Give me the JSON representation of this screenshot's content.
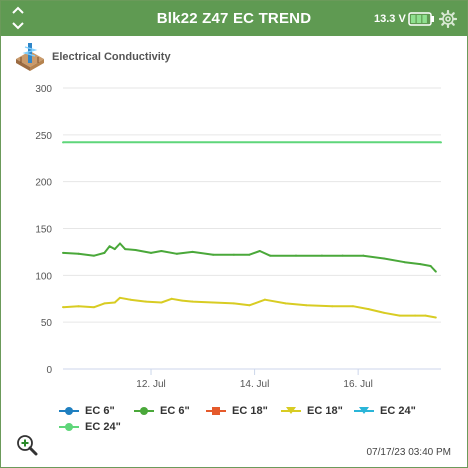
{
  "header": {
    "title": "Blk22 Z47 EC TREND",
    "voltage": "13.3 V",
    "bg_color": "#5f9a52"
  },
  "sensor": {
    "label": "Electrical Conductivity",
    "icon": "soil-probe-icon"
  },
  "chart_data": {
    "type": "line",
    "title": "",
    "xlabel": "",
    "ylabel": "",
    "ylim": [
      0,
      300
    ],
    "y_ticks": [
      "0",
      "50",
      "100",
      "150",
      "200",
      "250",
      "300"
    ],
    "x_ticks": [
      "12. Jul",
      "14. Jul",
      "16. Jul"
    ],
    "x_tick_values": [
      12,
      14,
      16
    ],
    "xlim": [
      10.3,
      17.6
    ],
    "grid": true,
    "series": [
      {
        "name": "EC 6\"",
        "color": "#1f7fc0",
        "x": [],
        "values": []
      },
      {
        "name": "EC 6\"",
        "color": "#4aa83a",
        "x": [
          10.3,
          10.6,
          10.9,
          11.1,
          11.2,
          11.3,
          11.4,
          11.5,
          11.7,
          12.0,
          12.2,
          12.5,
          12.8,
          13.2,
          13.6,
          13.9,
          14.1,
          14.3,
          14.8,
          15.3,
          15.7,
          16.1,
          16.5,
          16.9,
          17.2,
          17.4,
          17.5
        ],
        "values": [
          124,
          123,
          121,
          124,
          131,
          128,
          134,
          128,
          127,
          124,
          126,
          123,
          125,
          122,
          122,
          122,
          126,
          121,
          121,
          121,
          121,
          121,
          118,
          114,
          112,
          110,
          104
        ]
      },
      {
        "name": "EC 18\"",
        "color": "#e55a2b",
        "x": [],
        "values": []
      },
      {
        "name": "EC 18\"",
        "color": "#d8cc23",
        "x": [
          10.3,
          10.6,
          10.9,
          11.1,
          11.3,
          11.4,
          11.6,
          11.9,
          12.2,
          12.4,
          12.6,
          12.8,
          13.2,
          13.6,
          13.9,
          14.2,
          14.6,
          15.0,
          15.5,
          15.9,
          16.2,
          16.5,
          16.8,
          17.1,
          17.3,
          17.5
        ],
        "values": [
          66,
          67,
          66,
          70,
          71,
          76,
          74,
          72,
          71,
          75,
          73,
          72,
          71,
          70,
          68,
          74,
          70,
          68,
          67,
          67,
          64,
          60,
          57,
          57,
          57,
          55
        ]
      },
      {
        "name": "EC 24\"",
        "color": "#2ab5d8",
        "x": [],
        "values": []
      },
      {
        "name": "EC 24\"",
        "color": "#5fd67a",
        "x": [
          10.3,
          17.6
        ],
        "values": [
          242,
          242
        ]
      }
    ]
  },
  "timestamp": "07/17/23 03:40 PM"
}
